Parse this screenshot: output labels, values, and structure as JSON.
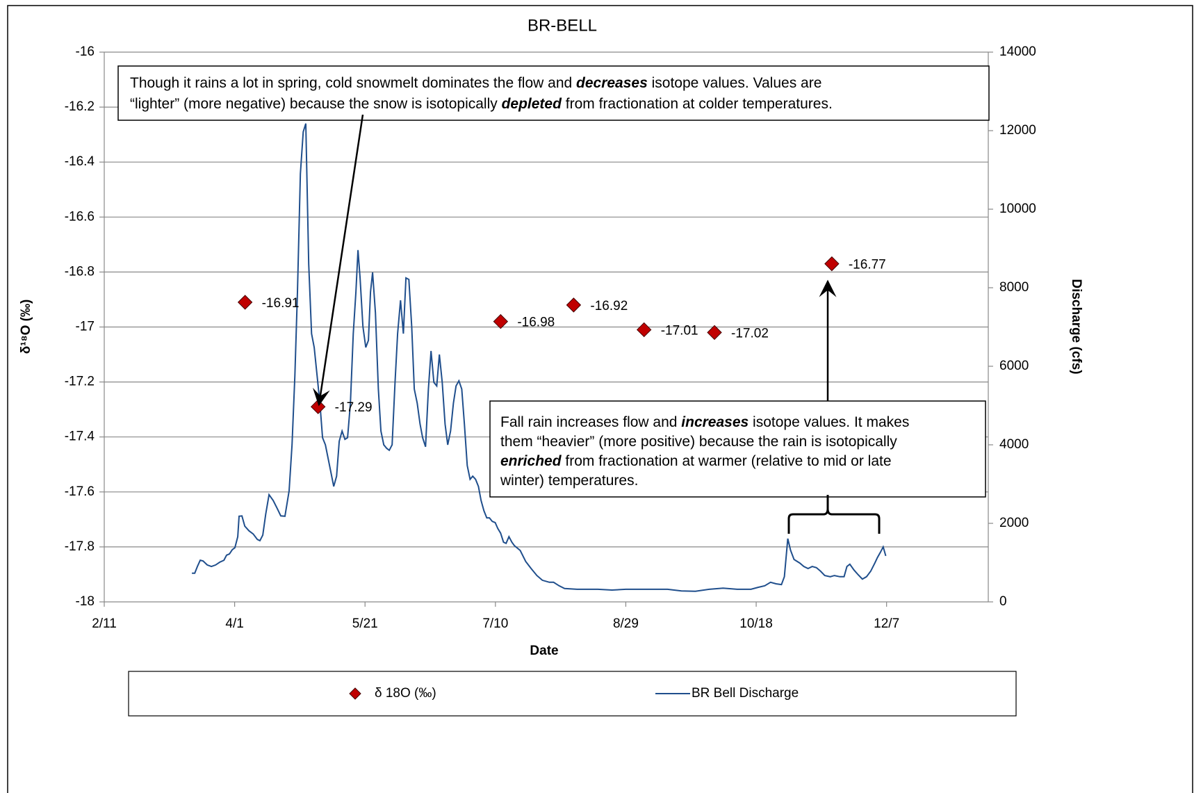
{
  "chart_data": {
    "type": "combo",
    "title": "BR-BELL",
    "xlabel": "Date",
    "ylabel": "δ¹⁸O (‰)",
    "y2label": "Discharge (cfs)",
    "xlim": [
      0,
      339
    ],
    "xticks": [
      {
        "value": 0,
        "label": "2/11"
      },
      {
        "value": 50,
        "label": "4/1"
      },
      {
        "value": 100,
        "label": "5/21"
      },
      {
        "value": 150,
        "label": "7/10"
      },
      {
        "value": 200,
        "label": "8/29"
      },
      {
        "value": 250,
        "label": "10/18"
      },
      {
        "value": 300,
        "label": "12/7"
      }
    ],
    "ylim": [
      -18,
      -16
    ],
    "yticks": [
      -18,
      -17.8,
      -17.6,
      -17.4,
      -17.2,
      -17,
      -16.8,
      -16.6,
      -16.4,
      -16.2,
      -16
    ],
    "y2lim": [
      0,
      14000
    ],
    "y2ticks": [
      0,
      2000,
      4000,
      6000,
      8000,
      10000,
      12000,
      14000
    ],
    "grid": true,
    "legend": "bottom",
    "series": [
      {
        "name": "δ 18O (‰)",
        "type": "scatter",
        "color": "#c00000",
        "x": [
          54,
          82,
          152,
          180,
          207,
          234,
          279
        ],
        "values": [
          -16.91,
          -17.29,
          -16.98,
          -16.92,
          -17.01,
          -17.02,
          -16.77
        ]
      },
      {
        "name": "BR Bell Discharge",
        "type": "line",
        "axis": "y2",
        "color": "#1f4e8c",
        "x": [
          33.6,
          34.7,
          35.7,
          36.8,
          37.9,
          39.5,
          41.1,
          42.7,
          44.3,
          45.9,
          46.9,
          48,
          49.1,
          50.1,
          51.2,
          51.7,
          52.8,
          53.9,
          55.5,
          57.1,
          58.7,
          59.7,
          60.8,
          61.9,
          63.2,
          64.8,
          66.4,
          67.7,
          69.3,
          70.9,
          72,
          73.1,
          74.1,
          75.2,
          76.3,
          77.3,
          78.4,
          79.5,
          80.5,
          81.6,
          82.7,
          83.7,
          84.8,
          86.4,
          88,
          89.1,
          90.1,
          91.2,
          92.3,
          93.3,
          94.4,
          95.5,
          96.5,
          97.3,
          98.1,
          99.2,
          100.3,
          101.3,
          102.1,
          102.9,
          104,
          105.1,
          106.1,
          107.2,
          108.3,
          109.3,
          110.4,
          111.5,
          112.5,
          113.6,
          114.7,
          115.7,
          116.8,
          117.9,
          118.9,
          120,
          121.1,
          122.1,
          123.2,
          124.3,
          125.3,
          126.4,
          127.5,
          128.5,
          129.6,
          130.7,
          131.7,
          132.8,
          133.9,
          134.9,
          136,
          137.1,
          138.1,
          139.2,
          140.3,
          141.3,
          142.4,
          143.5,
          144.5,
          145.6,
          146.7,
          147.7,
          148.8,
          149.9,
          150.9,
          152,
          153.1,
          154.1,
          155.2,
          156.3,
          157.3,
          159.5,
          161.6,
          163.7,
          165.9,
          168,
          170.7,
          172.3,
          174.4,
          176.5,
          181.3,
          189.3,
          194.7,
          200,
          208,
          216,
          221.3,
          226.7,
          232,
          237.3,
          242.7,
          248,
          250.7,
          253.3,
          255.5,
          257.6,
          259.7,
          260.8,
          262.1,
          263.2,
          264.5,
          266.7,
          268.3,
          269.9,
          271.5,
          273.1,
          274.7,
          276.3,
          278.4,
          280,
          282.1,
          283.7,
          284.8,
          285.9,
          287.5,
          289.1,
          290.7,
          292.3,
          293.9,
          295.5,
          296.5,
          297.6,
          298.7,
          299.7
        ],
        "values": [
          730,
          730,
          900,
          1060,
          1040,
          940,
          900,
          940,
          1010,
          1060,
          1190,
          1220,
          1330,
          1380,
          1660,
          2180,
          2190,
          1930,
          1810,
          1730,
          1590,
          1560,
          1700,
          2230,
          2730,
          2580,
          2370,
          2190,
          2180,
          2830,
          4000,
          5770,
          7890,
          10900,
          11970,
          12180,
          8600,
          6830,
          6480,
          5770,
          5060,
          4180,
          4000,
          3470,
          2940,
          3200,
          4090,
          4350,
          4140,
          4180,
          5060,
          6830,
          7890,
          8960,
          8250,
          7010,
          6480,
          6660,
          7890,
          8390,
          7360,
          5420,
          4350,
          4000,
          3910,
          3860,
          4000,
          5590,
          6830,
          7680,
          6830,
          8250,
          8210,
          7010,
          5420,
          5060,
          4530,
          4180,
          3950,
          5420,
          6390,
          5590,
          5500,
          6300,
          5590,
          4530,
          4000,
          4350,
          5060,
          5500,
          5630,
          5420,
          4530,
          3470,
          3120,
          3200,
          3120,
          2940,
          2580,
          2320,
          2140,
          2140,
          2050,
          2020,
          1870,
          1750,
          1520,
          1490,
          1660,
          1520,
          1430,
          1310,
          1030,
          850,
          670,
          550,
          500,
          500,
          410,
          340,
          320,
          320,
          300,
          320,
          320,
          320,
          280,
          270,
          320,
          350,
          320,
          320,
          370,
          410,
          500,
          460,
          440,
          640,
          1610,
          1310,
          1080,
          990,
          900,
          850,
          900,
          870,
          780,
          670,
          640,
          670,
          640,
          640,
          900,
          960,
          810,
          690,
          580,
          640,
          780,
          990,
          1130,
          1260,
          1400,
          1170
        ]
      }
    ],
    "annotations": [
      {
        "lines": [
          [
            {
              "text": "Though it rains a lot in spring, cold snowmelt dominates the flow and "
            },
            {
              "text": "decreases",
              "bold": true
            },
            {
              "text": " isotope values. Values are"
            }
          ],
          [
            {
              "text": "“lighter” (more negative) because the snow is isotopically "
            },
            {
              "text": "depleted",
              "bold": true
            },
            {
              "text": " from fractionation at colder temperatures."
            }
          ]
        ]
      },
      {
        "lines": [
          [
            {
              "text": "Fall rain increases flow and "
            },
            {
              "text": "increases",
              "bold": true
            },
            {
              "text": " isotope values. It makes"
            }
          ],
          [
            {
              "text": "them “heavier” (more positive) because the rain is isotopically"
            }
          ],
          [
            {
              "text": "enriched",
              "bold": true
            },
            {
              "text": " from fractionation at warmer (relative to mid or late"
            }
          ],
          [
            {
              "text": "winter) temperatures."
            }
          ]
        ]
      }
    ]
  }
}
